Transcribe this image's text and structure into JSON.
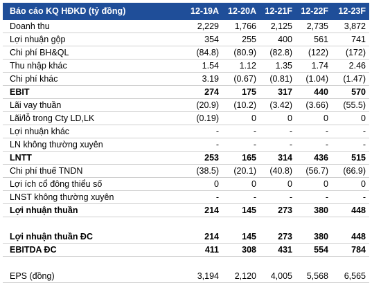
{
  "header": {
    "title": "Báo cáo KQ HĐKD (tỷ đồng)",
    "columns": [
      "12-19A",
      "12-20A",
      "12-21F",
      "12-22F",
      "12-23F"
    ]
  },
  "rows": [
    {
      "label": "Doanh thu",
      "values": [
        "2,229",
        "1,766",
        "2,125",
        "2,735",
        "3,872"
      ],
      "bold": false
    },
    {
      "label": "Lợi nhuận gộp",
      "values": [
        "354",
        "255",
        "400",
        "561",
        "741"
      ],
      "bold": false
    },
    {
      "label": "Chi phí BH&QL",
      "values": [
        "(84.8)",
        "(80.9)",
        "(82.8)",
        "(122)",
        "(172)"
      ],
      "bold": false
    },
    {
      "label": "Thu nhập khác",
      "values": [
        "1.54",
        "1.12",
        "1.35",
        "1.74",
        "2.46"
      ],
      "bold": false
    },
    {
      "label": "Chi phí khác",
      "values": [
        "3.19",
        "(0.67)",
        "(0.81)",
        "(1.04)",
        "(1.47)"
      ],
      "bold": false
    },
    {
      "label": "EBIT",
      "values": [
        "274",
        "175",
        "317",
        "440",
        "570"
      ],
      "bold": true
    },
    {
      "label": "Lãi vay thuần",
      "values": [
        "(20.9)",
        "(10.2)",
        "(3.42)",
        "(3.66)",
        "(55.5)"
      ],
      "bold": false
    },
    {
      "label": "Lãi/lỗ trong Cty LD,LK",
      "values": [
        "(0.19)",
        "0",
        "0",
        "0",
        "0"
      ],
      "bold": false
    },
    {
      "label": "Lợi nhuận khác",
      "values": [
        "-",
        "-",
        "-",
        "-",
        "-"
      ],
      "bold": false
    },
    {
      "label": "LN không thường xuyên",
      "values": [
        "-",
        "-",
        "-",
        "-",
        "-"
      ],
      "bold": false
    },
    {
      "label": "LNTT",
      "values": [
        "253",
        "165",
        "314",
        "436",
        "515"
      ],
      "bold": true
    },
    {
      "label": "Chi phí thuế TNDN",
      "values": [
        "(38.5)",
        "(20.1)",
        "(40.8)",
        "(56.7)",
        "(66.9)"
      ],
      "bold": false
    },
    {
      "label": "Lợi ích cổ đông thiểu số",
      "values": [
        "0",
        "0",
        "0",
        "0",
        "0"
      ],
      "bold": false
    },
    {
      "label": "LNST không thường xuyên",
      "values": [
        "-",
        "-",
        "-",
        "-",
        "-"
      ],
      "bold": false
    },
    {
      "label": "Lợi nhuận thuần",
      "values": [
        "214",
        "145",
        "273",
        "380",
        "448"
      ],
      "bold": true
    },
    {
      "blank": true
    },
    {
      "label": "Lợi nhuận thuần ĐC",
      "values": [
        "214",
        "145",
        "273",
        "380",
        "448"
      ],
      "bold": true
    },
    {
      "label": "EBITDA ĐC",
      "values": [
        "411",
        "308",
        "431",
        "554",
        "784"
      ],
      "bold": true
    },
    {
      "blank": true
    },
    {
      "label": "EPS (đồng)",
      "values": [
        "3,194",
        "2,120",
        "4,005",
        "5,568",
        "6,565"
      ],
      "bold": false
    }
  ]
}
